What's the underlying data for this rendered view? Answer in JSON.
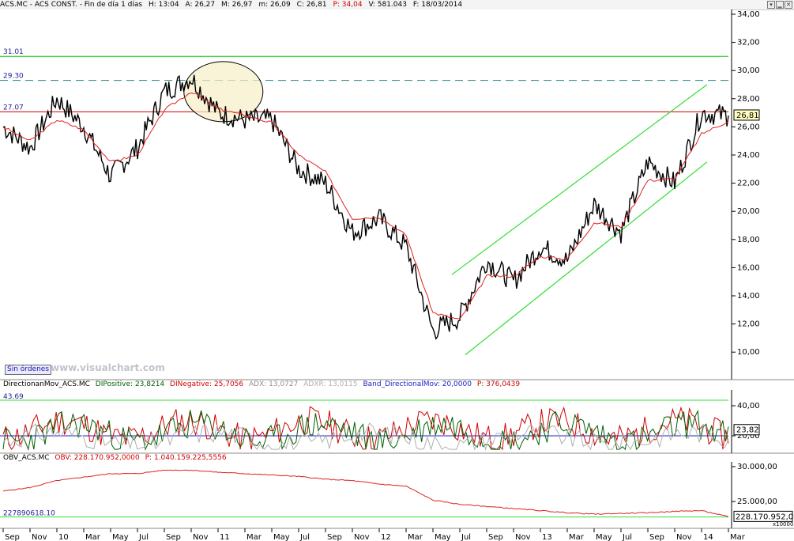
{
  "header": {
    "symbol": "ACS.MC - ACS CONST. - Fin de día 1 días",
    "high": "H: 13:04",
    "open": "A: 26,27",
    "max": "M: 26,97",
    "min": "m: 26,09",
    "close": "C: 26,81",
    "p": "P: 34,04",
    "volume": "V: 581.043",
    "date": "F: 18/03/2014"
  },
  "sin_ordenes": "Sin órdenes",
  "watermark": "www.visualchart.com",
  "price_panel": {
    "y_ticks": [
      "34,00",
      "32,00",
      "30,00",
      "28,00",
      "26,00",
      "24,00",
      "22,00",
      "20,00",
      "18,00",
      "16,00",
      "14,00",
      "12,00",
      "10,00"
    ],
    "levels": [
      {
        "label": "31.01",
        "value": 31.01,
        "color": "#00cc00",
        "style": "solid"
      },
      {
        "label": "29.30",
        "value": 29.3,
        "color": "#208080",
        "style": "dashed"
      },
      {
        "label": "27.07",
        "value": 27.07,
        "color": "#cc0000",
        "style": "solid"
      }
    ],
    "last_value": "26,81"
  },
  "dmi_panel": {
    "title": "DirectionanMov_ACS.MC",
    "dip": "DIPositive: 23,8214",
    "din": "DINegative: 25,7056",
    "adx": "ADX: 13,0727",
    "adxr": "ADXR: 13,0115",
    "band": "Band_DirectionalMov: 20,0000",
    "p": "P: 376,0439",
    "level_label": "43.69",
    "y_ticks": [
      "40,00",
      "20,00"
    ],
    "last_value": "23,82"
  },
  "obv_panel": {
    "title": "OBV_ACS.MC",
    "obv": "OBV: 228.170.952,0000",
    "p": "P: 1.040.159.225,5556",
    "level_label": "227890618.10",
    "y_ticks": [
      "30.000,00",
      "25.000,00"
    ],
    "last_value": "228.170.952,00",
    "scale_note": "x10000"
  },
  "x_axis_labels": [
    "Sep",
    "Nov",
    "10",
    "Mar",
    "May",
    "Jul",
    "Sep",
    "Nov",
    "11",
    "Mar",
    "May",
    "Jul",
    "Sep",
    "Nov",
    "12",
    "Mar",
    "May",
    "Jul",
    "Sep",
    "Nov",
    "13",
    "Mar",
    "May",
    "Jul",
    "Sep",
    "Nov",
    "14",
    "Mar"
  ],
  "chart_data": {
    "type": "line",
    "title": "ACS.MC - ACS CONST.",
    "price_series": {
      "name": "ACS.MC",
      "x": [
        "Sep 2009",
        "Nov 2009",
        "Jan 2010",
        "Mar 2010",
        "May 2010",
        "Jul 2010",
        "Sep 2010",
        "Nov 2010",
        "Jan 2011",
        "Mar 2011",
        "May 2011",
        "Jul 2011",
        "Sep 2011",
        "Nov 2011",
        "Jan 2012",
        "Mar 2012",
        "May 2012",
        "Jul 2012",
        "Sep 2012",
        "Nov 2012",
        "Jan 2013",
        "Mar 2013",
        "May 2013",
        "Jul 2013",
        "Sep 2013",
        "Nov 2013",
        "Jan 2014",
        "Mar 2014"
      ],
      "values": [
        26.0,
        24.5,
        28.0,
        26.0,
        22.5,
        24.5,
        28.5,
        29.5,
        27.0,
        26.5,
        26.5,
        23.0,
        22.0,
        18.5,
        19.5,
        17.5,
        11.5,
        12.5,
        16.5,
        15.0,
        17.5,
        16.5,
        20.5,
        18.5,
        23.5,
        22.0,
        27.0,
        26.8
      ]
    },
    "moving_average_values": [
      26.0,
      25.0,
      26.5,
      25.8,
      23.5,
      24.0,
      27.2,
      28.5,
      27.3,
      26.8,
      26.3,
      24.0,
      22.8,
      19.5,
      19.6,
      18.3,
      12.8,
      12.3,
      15.4,
      15.4,
      16.8,
      16.6,
      19.2,
      18.9,
      22.2,
      22.3,
      25.5,
      26.4
    ],
    "ylim": [
      9,
      34
    ],
    "levels": [
      31.01,
      29.3,
      27.07
    ],
    "channel": {
      "upper": [
        15.5,
        29.0
      ],
      "lower": [
        9.8,
        23.5
      ],
      "start": "Jul 2012",
      "end": "Mar 2014"
    },
    "dmi": {
      "dip_last": 23.8214,
      "din_last": 25.7056,
      "adx_last": 13.0727,
      "adxr_last": 13.0115,
      "band": 20.0,
      "level": 43.69
    },
    "obv": {
      "values": [
        26500,
        27000,
        28000,
        28500,
        29000,
        29000,
        29500,
        29500,
        29200,
        29000,
        28800,
        28600,
        28200,
        28000,
        27500,
        27200,
        25200,
        24600,
        24300,
        24000,
        23700,
        23400,
        23200,
        23300,
        23400,
        23600,
        23700,
        22817
      ],
      "last": 228170952.0,
      "level": 227890618.1
    }
  }
}
